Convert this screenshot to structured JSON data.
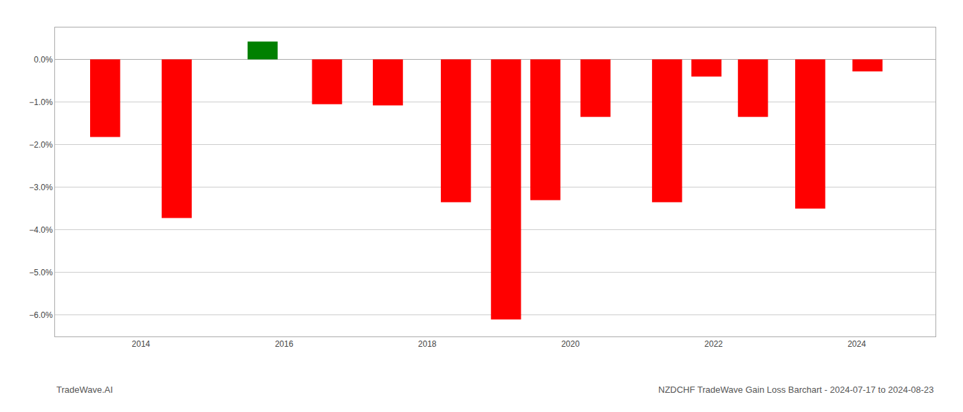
{
  "chart_data": {
    "type": "bar",
    "x": [
      2013.5,
      2014.5,
      2015.7,
      2016.6,
      2017.45,
      2018.4,
      2019.1,
      2019.65,
      2020.35,
      2021.35,
      2021.9,
      2022.55,
      2023.35,
      2024.15
    ],
    "values": [
      -1.82,
      -3.72,
      0.42,
      -1.05,
      -1.08,
      -3.35,
      -6.1,
      -3.3,
      -1.35,
      -3.35,
      -0.4,
      -1.35,
      -3.5,
      -0.28
    ],
    "colors": [
      "#ff0000",
      "#ff0000",
      "#008000",
      "#ff0000",
      "#ff0000",
      "#ff0000",
      "#ff0000",
      "#ff0000",
      "#ff0000",
      "#ff0000",
      "#ff0000",
      "#ff0000",
      "#ff0000",
      "#ff0000"
    ],
    "xlim": [
      2012.8,
      2025.1
    ],
    "xticks": [
      2014,
      2016,
      2018,
      2020,
      2022,
      2024
    ],
    "ylim": [
      -6.5,
      0.75
    ],
    "yticks": [
      {
        "value": 0.0,
        "label": "0.0%"
      },
      {
        "value": -1.0,
        "label": "−1.0%"
      },
      {
        "value": -2.0,
        "label": "−2.0%"
      },
      {
        "value": -3.0,
        "label": "−3.0%"
      },
      {
        "value": -4.0,
        "label": "−4.0%"
      },
      {
        "value": -5.0,
        "label": "−5.0%"
      },
      {
        "value": -6.0,
        "label": "−6.0%"
      }
    ],
    "grid": true,
    "annotations": [
      "TradeWave.AI",
      "NZDCHF TradeWave Gain Loss Barchart - 2024-07-17 to 2024-08-23"
    ]
  }
}
